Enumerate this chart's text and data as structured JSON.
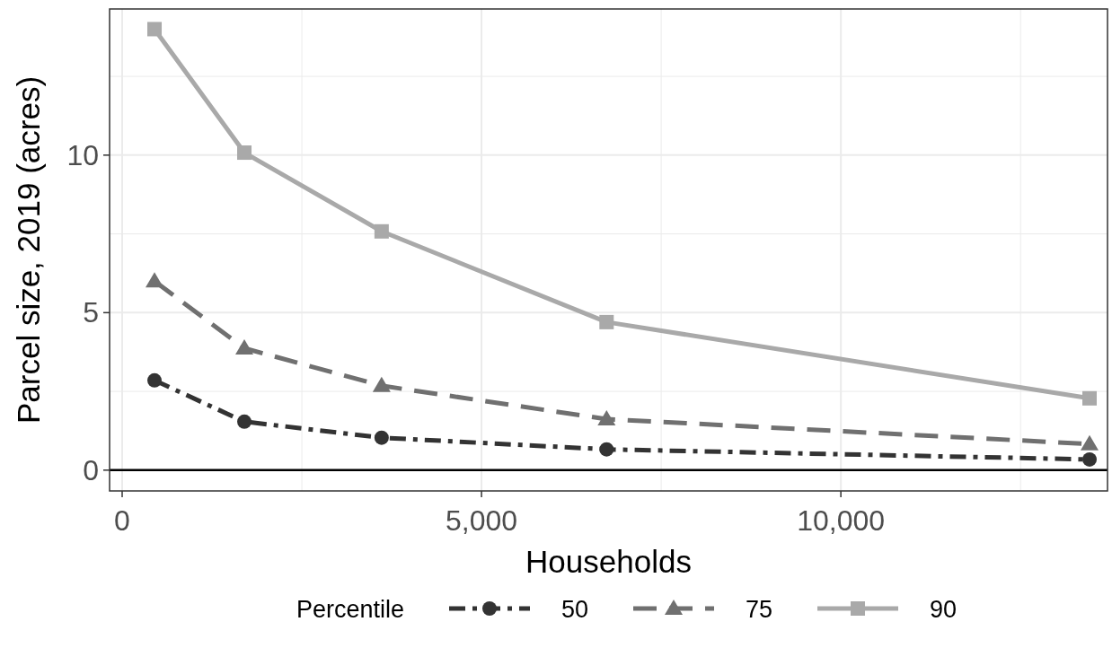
{
  "chart_data": {
    "type": "line",
    "xlabel": "Households",
    "ylabel": "Parcel size, 2019 (acres)",
    "legend_title": "Percentile",
    "legend": "bottom",
    "grid": true,
    "x": [
      450,
      1700,
      3610,
      6740,
      13460
    ],
    "xlim": [
      -175,
      13710
    ],
    "ylim": [
      -0.66,
      14.64
    ],
    "xticks": [
      {
        "value": 0,
        "label": "0"
      },
      {
        "value": 2500,
        "label": null
      },
      {
        "value": 5000,
        "label": "5,000"
      },
      {
        "value": 7500,
        "label": null
      },
      {
        "value": 10000,
        "label": "10,000"
      },
      {
        "value": 12500,
        "label": null
      }
    ],
    "yticks": [
      0,
      {
        "value": 2.5,
        "label": null
      },
      5,
      {
        "value": 7.5,
        "label": null
      },
      10,
      {
        "value": 12.5,
        "label": null
      }
    ],
    "ref_lines": [
      {
        "axis": "y",
        "value": 0,
        "color": "#000000"
      }
    ],
    "series": [
      {
        "name": "50",
        "color": "#333333",
        "marker": "circle",
        "line_style": "dotted",
        "values": [
          2.85,
          1.54,
          1.03,
          0.66,
          0.34
        ]
      },
      {
        "name": "75",
        "color": "#707070",
        "marker": "triangle",
        "line_style": "dashed",
        "values": [
          6.0,
          3.87,
          2.68,
          1.62,
          0.83
        ]
      },
      {
        "name": "90",
        "color": "#a9a9a9",
        "marker": "square",
        "line_style": "solid",
        "values": [
          14.0,
          10.08,
          7.58,
          4.7,
          2.28
        ]
      }
    ]
  }
}
